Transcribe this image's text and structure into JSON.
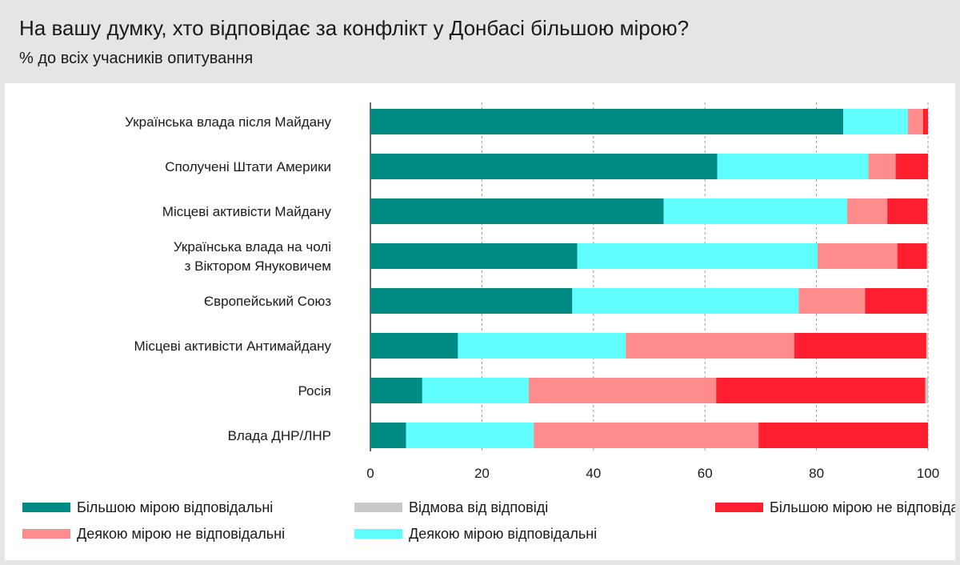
{
  "header": {
    "title": "На вашу думку, хто відповідає за конфлікт у Донбасі більшою мірою?",
    "subtitle": "% до всіх учасників опитування"
  },
  "chart_data": {
    "type": "bar",
    "orientation": "horizontal",
    "stacked": true,
    "categories": [
      [
        "Українська влада після Майдану"
      ],
      [
        "Сполучені Штати Америки"
      ],
      [
        "Місцеві активісти Майдану"
      ],
      [
        "Українська влада на чолі",
        "з Віктором Януковичем"
      ],
      [
        "Європейський Союз"
      ],
      [
        "Місцеві активісти Антимайдану"
      ],
      [
        "Росія"
      ],
      [
        "Влада ДНР/ЛНР"
      ]
    ],
    "series": [
      {
        "name": "Більшою мірою відповідальні",
        "color": "#008b84",
        "values": [
          84.8,
          62.2,
          52.6,
          37.1,
          36.2,
          15.7,
          9.3,
          6.4
        ]
      },
      {
        "name": "Деякою мірою відповідальні",
        "color": "#5ffdfd",
        "values": [
          11.6,
          27.1,
          32.9,
          43.1,
          40.6,
          30.1,
          19.1,
          22.9
        ]
      },
      {
        "name": "Деякою мірою не відповідальні",
        "color": "#ff8c8c",
        "values": [
          2.7,
          4.9,
          7.2,
          14.3,
          11.9,
          30.2,
          33.6,
          40.3
        ]
      },
      {
        "name": "Більшою мірою не відповідальні",
        "color": "#ff1f2e",
        "values": [
          0.9,
          5.8,
          7.2,
          5.3,
          11.1,
          23.7,
          37.5,
          30.4
        ]
      },
      {
        "name": "Відмова від відповіді",
        "color": "#c8c8c8",
        "values": [
          0.0,
          0.0,
          0.1,
          0.2,
          0.2,
          0.3,
          0.5,
          0.0
        ]
      }
    ],
    "xlim": [
      0,
      100
    ],
    "xticks": [
      "0",
      "20",
      "40",
      "60",
      "80",
      "100"
    ],
    "grid": true,
    "legend": {
      "placement": "bottom",
      "order": [
        0,
        2,
        4,
        1,
        3
      ]
    }
  }
}
